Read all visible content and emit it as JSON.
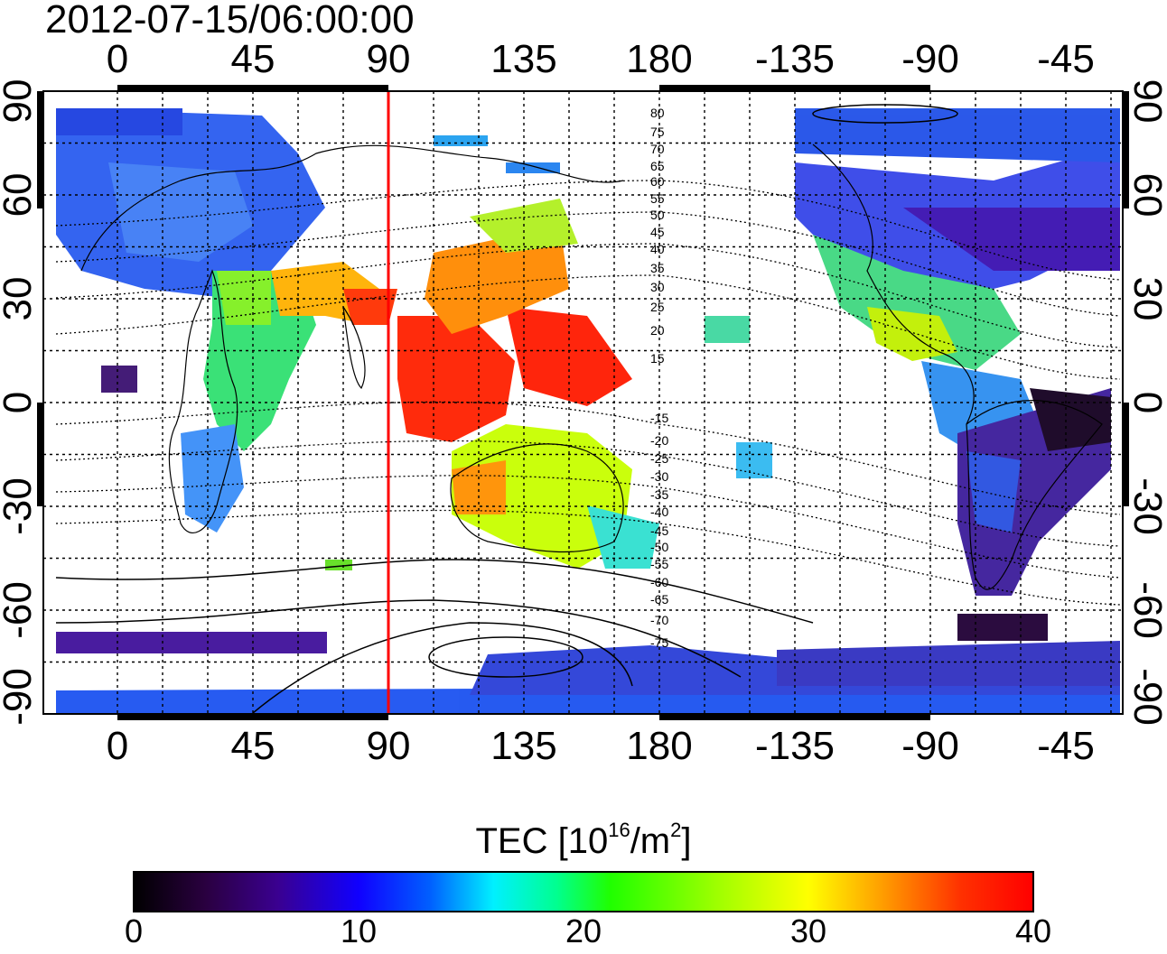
{
  "title": "2012-07-15/06:00:00",
  "x_ticks": [
    "0",
    "45",
    "90",
    "135",
    "180",
    "-135",
    "-90",
    "-45"
  ],
  "y_ticks": [
    "90",
    "60",
    "30",
    "0",
    "-30",
    "-60",
    "-90"
  ],
  "colorbar": {
    "label_main": "TEC  [10",
    "label_exp1": "16",
    "label_mid": "/m",
    "label_exp2": "2",
    "label_end": "]",
    "ticks": [
      "0",
      "10",
      "20",
      "30",
      "40"
    ],
    "range": [
      0,
      40
    ]
  },
  "map": {
    "lon_range": [
      -20,
      340
    ],
    "lat_range": [
      -90,
      90
    ],
    "marker_longitude": 90,
    "marker_color": "#ff0000",
    "contour_labels": [
      "80",
      "75",
      "70",
      "65",
      "60",
      "55",
      "50",
      "45",
      "40",
      "35",
      "30",
      "25",
      "20",
      "15",
      "-15",
      "-20",
      "-25",
      "-30",
      "-35",
      "-40",
      "-45",
      "-50",
      "-55",
      "-60",
      "-65",
      "-70",
      "-75"
    ]
  }
}
